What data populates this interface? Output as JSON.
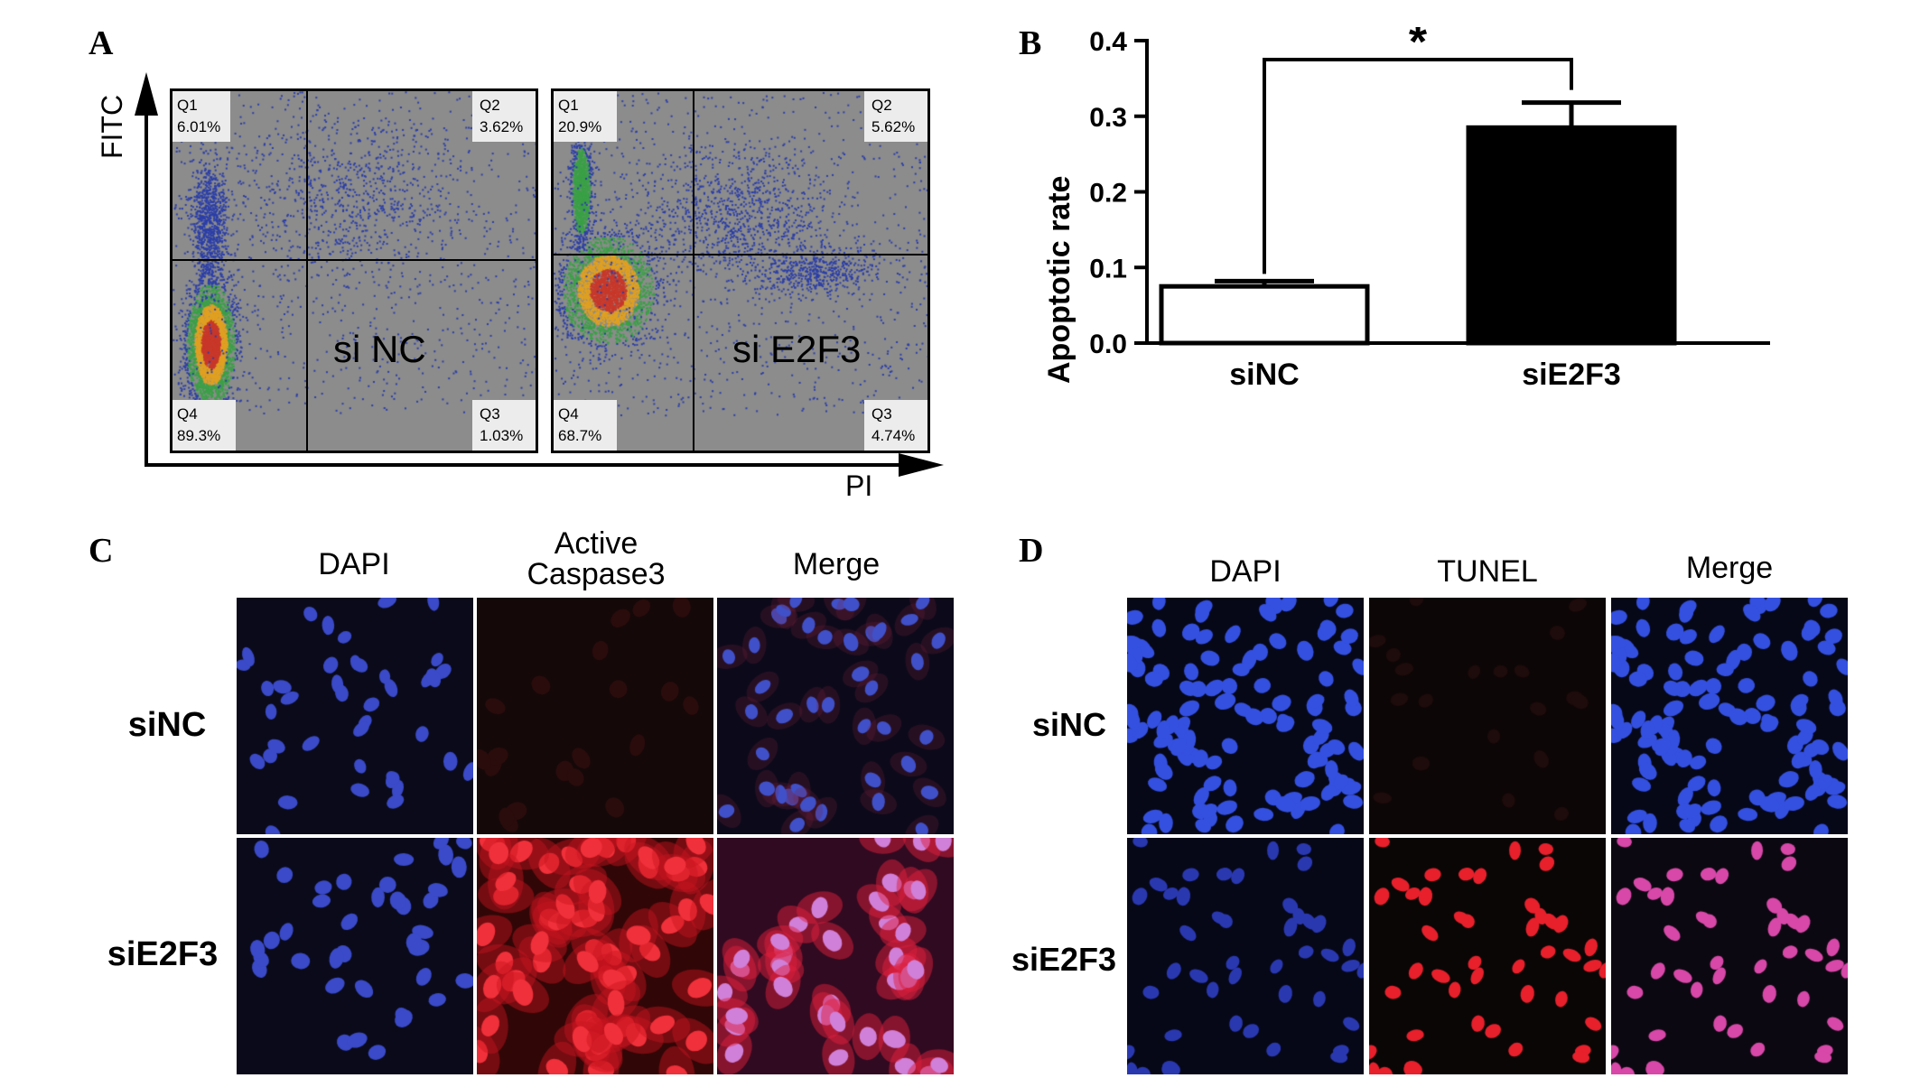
{
  "panels": {
    "a": "A",
    "b": "B",
    "c": "C",
    "d": "D"
  },
  "flow": {
    "y_axis_label": "FITC",
    "x_axis_label": "PI",
    "plots": [
      {
        "group": "si NC",
        "q1_label": "Q1",
        "q1_value": "6.01%",
        "q2_label": "Q2",
        "q2_value": "3.62%",
        "q3_label": "Q3",
        "q3_value": "1.03%",
        "q4_label": "Q4",
        "q4_value": "89.3%"
      },
      {
        "group": "si E2F3",
        "q1_label": "Q1",
        "q1_value": "20.9%",
        "q2_label": "Q2",
        "q2_value": "5.62%",
        "q3_label": "Q3",
        "q3_value": "4.74%",
        "q4_label": "Q4",
        "q4_value": "68.7%"
      }
    ]
  },
  "chart_data": {
    "type": "bar",
    "categories": [
      "siNC",
      "siE2F3"
    ],
    "values": [
      0.075,
      0.285
    ],
    "errors": [
      0.007,
      0.033
    ],
    "colors": [
      "#ffffff",
      "#000000"
    ],
    "ylabel": "Apoptotic rate",
    "ylim": [
      0.0,
      0.4
    ],
    "yticks": [
      "0.0",
      "0.1",
      "0.2",
      "0.3",
      "0.4"
    ],
    "significance": "*"
  },
  "immuno_c": {
    "col_dapi": "DAPI",
    "col_active": "Active",
    "col_caspase": "Caspase3",
    "col_merge": "Merge",
    "row_1": "siNC",
    "row_2": "siE2F3"
  },
  "immuno_d": {
    "col_dapi": "DAPI",
    "col_tunel": "TUNEL",
    "col_merge": "Merge",
    "row_1": "siNC",
    "row_2": "siE2F3"
  }
}
